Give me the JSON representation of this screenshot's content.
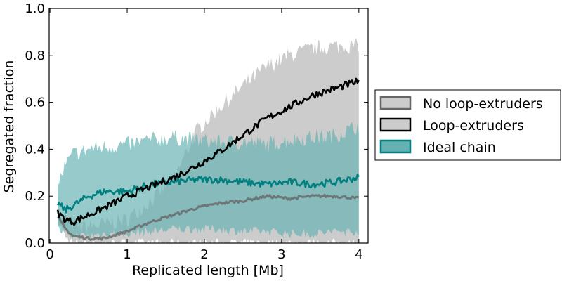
{
  "chart_data": {
    "type": "line",
    "title": "",
    "xlabel": "Replicated length [Mb]",
    "ylabel": "Segregated fraction",
    "xlim": [
      -0.01,
      4.12
    ],
    "ylim": [
      0.0,
      1.0
    ],
    "xticks": [
      "0",
      "1",
      "2",
      "3",
      "4"
    ],
    "yticks": [
      "0.0",
      "0.2",
      "0.4",
      "0.6",
      "0.8",
      "1.0"
    ],
    "grid": false,
    "legend_placement": "outside-right",
    "series": [
      {
        "name": "No loop-extruders",
        "line_color": "#666666",
        "band_color": "#cccccc",
        "x": [
          0.1,
          0.2,
          0.3,
          0.5,
          0.7,
          1.0,
          1.3,
          1.6,
          1.9,
          2.2,
          2.5,
          2.8,
          3.1,
          3.4,
          3.7,
          4.0
        ],
        "mean": [
          0.11,
          0.06,
          0.03,
          0.02,
          0.02,
          0.05,
          0.09,
          0.12,
          0.15,
          0.17,
          0.18,
          0.2,
          0.19,
          0.2,
          0.2,
          0.19
        ],
        "upper": [
          0.12,
          0.1,
          0.08,
          0.07,
          0.08,
          0.1,
          0.18,
          0.27,
          0.48,
          0.58,
          0.67,
          0.75,
          0.8,
          0.83,
          0.84,
          0.84
        ],
        "lower": [
          0.1,
          0.03,
          0.0,
          0.0,
          0.0,
          0.0,
          0.0,
          0.0,
          0.0,
          0.0,
          0.0,
          0.0,
          0.0,
          0.0,
          0.0,
          0.0
        ]
      },
      {
        "name": "Loop-extruders",
        "line_color": "#000000",
        "band_color": "#cccccc",
        "x": [
          0.1,
          0.2,
          0.3,
          0.5,
          0.7,
          1.0,
          1.3,
          1.6,
          1.9,
          2.2,
          2.5,
          2.8,
          3.1,
          3.4,
          3.7,
          4.0
        ],
        "mean": [
          0.13,
          0.1,
          0.09,
          0.12,
          0.15,
          0.2,
          0.24,
          0.28,
          0.33,
          0.39,
          0.46,
          0.53,
          0.58,
          0.63,
          0.66,
          0.69
        ],
        "upper": [
          0.13,
          0.1,
          0.09,
          0.12,
          0.15,
          0.2,
          0.24,
          0.28,
          0.33,
          0.39,
          0.46,
          0.53,
          0.58,
          0.63,
          0.66,
          0.69
        ],
        "lower": [
          0.13,
          0.1,
          0.09,
          0.12,
          0.15,
          0.2,
          0.24,
          0.28,
          0.33,
          0.39,
          0.46,
          0.53,
          0.58,
          0.63,
          0.66,
          0.69
        ]
      },
      {
        "name": "Ideal chain",
        "line_color": "#008080",
        "band_color": "#66b2b2",
        "x": [
          0.1,
          0.2,
          0.3,
          0.5,
          0.7,
          1.0,
          1.3,
          1.6,
          1.9,
          2.2,
          2.5,
          2.8,
          3.1,
          3.4,
          3.7,
          4.0
        ],
        "mean": [
          0.17,
          0.14,
          0.16,
          0.2,
          0.22,
          0.22,
          0.25,
          0.26,
          0.27,
          0.27,
          0.26,
          0.25,
          0.26,
          0.25,
          0.26,
          0.28
        ],
        "upper": [
          0.25,
          0.33,
          0.38,
          0.4,
          0.41,
          0.42,
          0.44,
          0.45,
          0.44,
          0.43,
          0.43,
          0.42,
          0.44,
          0.45,
          0.46,
          0.5
        ],
        "lower": [
          0.06,
          0.04,
          0.03,
          0.03,
          0.04,
          0.04,
          0.05,
          0.06,
          0.06,
          0.06,
          0.05,
          0.05,
          0.04,
          0.04,
          0.05,
          0.05
        ]
      }
    ]
  },
  "colors": {
    "gray_band": "#cccccc",
    "teal_band": "#66b2b2",
    "teal_line": "#008080",
    "gray_line": "#666666",
    "black_line": "#000000"
  }
}
